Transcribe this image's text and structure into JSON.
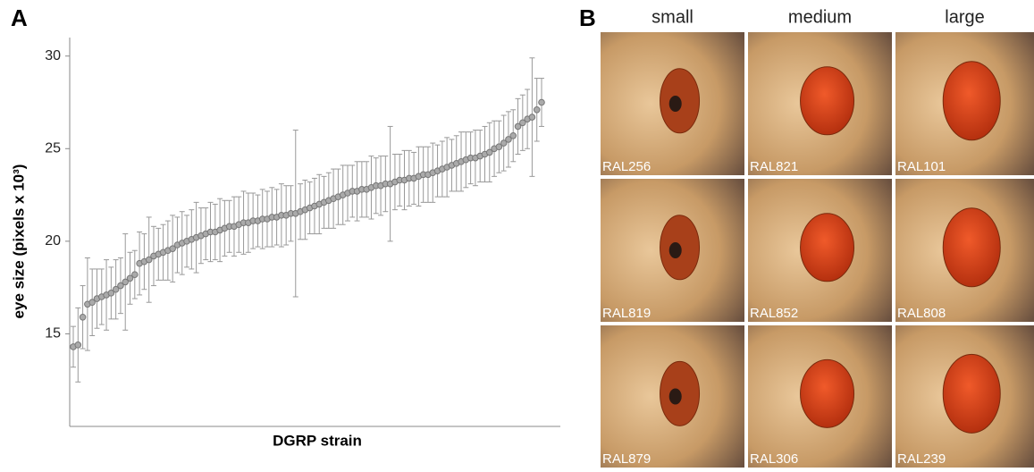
{
  "chart_data": {
    "type": "errorbar",
    "panel_label": "A",
    "ylabel": "eye size (pixels x 10³)",
    "xlabel": "DGRP strain",
    "ylim": [
      10,
      31
    ],
    "yticks": [
      15,
      20,
      25,
      30
    ],
    "color": "#999999",
    "values": [
      14.3,
      14.4,
      15.9,
      16.6,
      16.7,
      16.9,
      17.0,
      17.1,
      17.2,
      17.4,
      17.6,
      17.8,
      18.0,
      18.2,
      18.8,
      18.9,
      19.0,
      19.2,
      19.3,
      19.4,
      19.5,
      19.6,
      19.8,
      19.9,
      20.0,
      20.1,
      20.2,
      20.3,
      20.4,
      20.5,
      20.5,
      20.6,
      20.7,
      20.8,
      20.8,
      20.9,
      21.0,
      21.0,
      21.1,
      21.1,
      21.2,
      21.2,
      21.3,
      21.3,
      21.4,
      21.4,
      21.5,
      21.5,
      21.6,
      21.7,
      21.8,
      21.9,
      22.0,
      22.1,
      22.2,
      22.3,
      22.4,
      22.5,
      22.6,
      22.7,
      22.7,
      22.8,
      22.8,
      22.9,
      23.0,
      23.0,
      23.1,
      23.1,
      23.2,
      23.3,
      23.3,
      23.4,
      23.4,
      23.5,
      23.6,
      23.6,
      23.7,
      23.8,
      23.9,
      24.0,
      24.1,
      24.2,
      24.3,
      24.4,
      24.5,
      24.5,
      24.6,
      24.7,
      24.8,
      25.0,
      25.1,
      25.3,
      25.5,
      25.7,
      26.2,
      26.4,
      26.6,
      26.7,
      27.1,
      27.5
    ],
    "errors": [
      1.1,
      2.0,
      1.7,
      2.5,
      1.8,
      1.6,
      1.5,
      1.9,
      1.4,
      1.6,
      1.5,
      2.6,
      1.4,
      1.3,
      1.7,
      1.5,
      2.3,
      1.6,
      1.4,
      1.5,
      1.6,
      1.8,
      1.5,
      1.7,
      1.4,
      1.6,
      1.9,
      1.5,
      1.4,
      1.6,
      1.5,
      1.7,
      1.5,
      1.4,
      1.6,
      1.5,
      1.7,
      1.6,
      1.5,
      1.4,
      1.6,
      1.5,
      1.6,
      1.5,
      1.7,
      1.6,
      1.5,
      4.5,
      1.5,
      1.6,
      1.4,
      1.5,
      1.6,
      1.4,
      1.5,
      1.6,
      1.5,
      1.6,
      1.5,
      1.4,
      1.6,
      1.5,
      1.5,
      1.7,
      1.5,
      1.6,
      1.5,
      3.1,
      1.5,
      1.4,
      1.6,
      1.5,
      1.4,
      1.6,
      1.5,
      1.5,
      1.6,
      1.4,
      1.5,
      1.6,
      1.4,
      1.5,
      1.6,
      1.5,
      1.4,
      1.5,
      1.4,
      1.5,
      1.6,
      1.5,
      1.4,
      1.5,
      1.5,
      1.4,
      1.5,
      1.5,
      1.6,
      3.2,
      1.7,
      1.3
    ]
  },
  "panel_b": {
    "label": "B",
    "columns": [
      "small",
      "medium",
      "large"
    ],
    "rows": [
      [
        "RAL256",
        "RAL821",
        "RAL101"
      ],
      [
        "RAL819",
        "RAL852",
        "RAL808"
      ],
      [
        "RAL879",
        "RAL306",
        "RAL239"
      ]
    ]
  }
}
